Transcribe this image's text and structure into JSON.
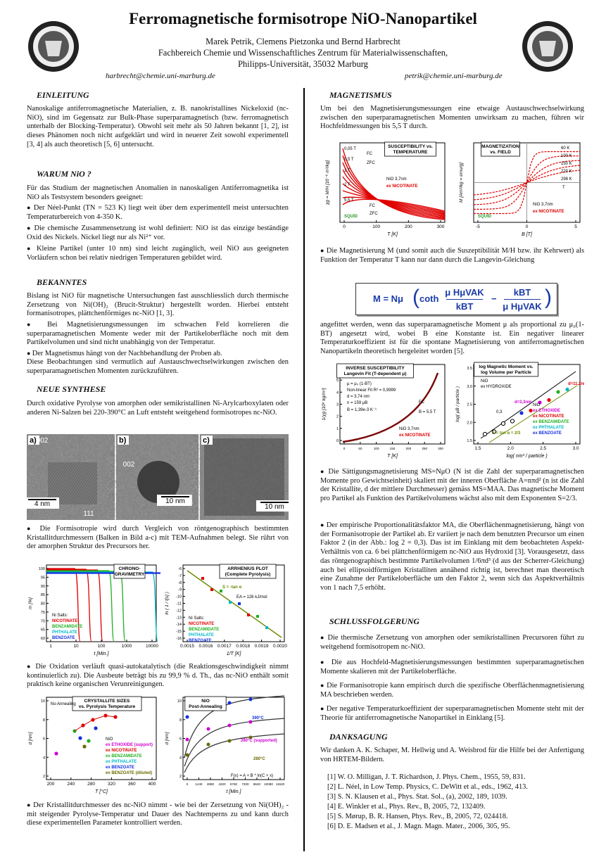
{
  "header": {
    "title": "Ferromagnetische formisotrope NiO-Nanopartikel",
    "authors": "Marek Petrik, Clemens Pietzonka und Bernd Harbrecht",
    "affiliation": "Fachbereich Chemie und Wissenschaftliches Zentrum für Materialwissenschaften,",
    "address": "Philipps-Universität, 35032 Marburg",
    "email_left": "harbrecht@chemie.uni-marburg.de",
    "email_right": "petrik@chemie.uni-marburg.de"
  },
  "left": {
    "einleitung": {
      "heading": "EINLEITUNG",
      "text": "Nanoskalige antiferromagnetische Materialien, z. B. nanokristallines Nickeloxid (nc-NiO), sind im Gegensatz zur Bulk-Phase superparamagnetisch (bzw. ferromagnetisch unterhalb der Blocking-Temperatur). Obwohl seit mehr als 50 Jahren bekannt [1, 2], ist dieses Phänomen noch nicht aufgeklärt und wird in neuerer Zeit sowohl experimentell [3, 4] als auch theoretisch [5, 6] untersucht."
    },
    "warum": {
      "heading": "WARUM NiO ?",
      "intro": "Für das Studium der magnetischen Anomalien in nanoskaligen Antiferromagnetika ist NiO als Testsystem besonders geeignet:",
      "bullets": [
        "Der Néel-Punkt (TN = 523 K) liegt weit über dem experimentell meist untersuchten Temperaturbereich von 4-350 K.",
        "Die chemische Zusammensetzung ist wohl definiert: NiO ist das einzige beständige Oxid des Nickels. Nickel liegt nur als Ni²⁺ vor.",
        "Kleine Partikel (unter 10 nm) sind leicht zugänglich, weil NiO aus geeigneten Vorläufern schon bei relativ niedrigen Temperaturen gebildet wird."
      ]
    },
    "bekanntes": {
      "heading": "BEKANNTES",
      "intro": "Bislang ist NiO für magnetische Untersuchungen fast ausschliesslich durch thermische Zersetzung von Ni(OH)₂ (Brucit-Struktur) hergestellt worden. Hierbei entsteht formanisotropes, plättchenförmiges nc-NiO [1, 3].",
      "bullets": [
        "Bei Magnetisierungsmessungen im schwachen Feld korrelieren die superparamagnetischen Momente weder mit der Partikeloberfläche noch mit dem Partikelvolumen und sind nicht unabhängig von der Temperatur.",
        "Der Magnetismus hängt von der Nachbehandlung der Proben ab."
      ],
      "closing": "Diese Beobachtungen sind vermutlich auf Austauschwechselwirkungen zwischen den superparamagnetischen Momenten zurückzuführen."
    },
    "synthese": {
      "heading": "NEUE SYNTHESE",
      "text": "Durch oxidative Pyrolyse von amorphen oder semikristallinen Ni-Arylcarboxylaten oder anderen Ni-Salzen bei 220-390°C an Luft entsteht weitgehend formisotropes nc-NiO.",
      "tem": [
        {
          "label": "a)",
          "marks": [
            "002",
            "4 nm",
            "111"
          ]
        },
        {
          "label": "b)",
          "marks": [
            "002",
            "10 nm"
          ]
        },
        {
          "label": "c)",
          "marks": [
            "10 nm"
          ]
        }
      ],
      "bullet1": "Die Formisotropie wird durch Vergleich von röntgenographisch bestimmten Kristallitdurchmessern (Balken in Bild a-c) mit TEM-Aufnahmen belegt. Sie rührt von der amorphen Struktur des Precursors her.",
      "bullet2": "Die Oxidation verläuft quasi-autokatalytisch (die Reaktionsgeschwindigkeit nimmt kontinuierlich zu). Die Ausbeute beträgt bis zu 99,9 % d. Th., das nc-NiO enthält somit praktisch keine organischen Verunreinigungen.",
      "bullet3": "Der Kristallitdurchmesser des nc-NiO nimmt - wie bei der Zersetzung von Ni(OH)₂ - mit steigender Pyrolyse-Temperatur und Dauer des Nachtemperns zu und kann durch diese experimentellen Parameter kontrolliert werden."
    }
  },
  "right": {
    "magnetismus": {
      "heading": "MAGNETISMUS",
      "text": "Um bei den Magnetisierungsmessungen eine etwaige Austauschwechselwirkung zwischen den superparamagnetischen Momenten unwirksam zu machen, führen wir Hochfeldmessungen bis 5,5 T durch.",
      "bullet1": "Die Magnetisierung M (und somit auch die Suszeptibilität M/H bzw. ihr Kehrwert) als Funktion der Temperatur T kann nur dann durch die Langevin-Gleichung",
      "equation": {
        "lhs": "M = Nμ",
        "func": "coth",
        "num1": "μ HμVAK",
        "den1": "kBT",
        "op": "−",
        "num2": "kBT",
        "den2": "μ HμVAK"
      },
      "after": "angefittet werden, wenn das superparamagnetische Moment μ als proportional zu μ₀(1-BT) angesetzt wird, wobei B eine Konstante ist. Ein negativer linearer Temperaturkoeffizient ist für die spontane Magnetisierung von antiferromagnetischen Nanopartikeln theoretisch hergeleitet worden [5].",
      "bullet2": "Die Sättigungsmagnetisierung MS=NμO (N ist die Zahl der superparamagnetischen Momente pro Gewichtseinheit) skaliert mit der inneren Oberfläche A=nπd² (n ist die Zahl der Kristallite, d der mittlere Durchmesser) gemäss MS=MAA. Das magnetische Moment pro Partikel als Funktion des Partikelvolumens wächst also mit dem Exponenten S=2/3.",
      "bullet3": "Der empirische Proportionalitätsfaktor MA, die Oberflächenmagnetisierung, hängt von der Formanisotropie der Partikel ab. Er variiert je nach dem benutzten Precursor um einen Faktor 2 (in der Abb.: log 2 = 0,3). Das ist im Einklang mit dem beobachteten Aspekt-Verhältnis von ca. 6 bei plättchenförmigem nc-NiO aus Hydroxid [3]. Vorausgesetzt, dass das röntgenographisch bestimmte Partikelvolumen 1/6πd³ (d aus der Scherrer-Gleichung) auch bei ellipsoidförmigen Kristalliten annähend richtig ist, berechnet man theoretisch eine Zunahme der Partikeloberfläche um den Faktor 2, wenn sich das Aspektverhältnis von 1 nach 7,5 erhöht."
    },
    "schluss": {
      "heading": "SCHLUSSFOLGERUNG",
      "bullets": [
        "Die thermische Zersetzung von amorphen oder semikristallinen Precursoren führt zu weitgehend formisotropem nc-NiO.",
        "Die aus Hochfeld-Magnetisierungsmessungen bestimmten superparamagnetischen Momente skalieren mit der Partikeloberfläche.",
        "Die Formanisotropie kann empirisch durch die spezifische Oberflächenmagnetisierung MA beschrieben werden.",
        "Der negative Temperaturkoeffizient der superparamagnetischen Momente steht mit der Theorie für antiferromagnetische Nanopartikel in Einklang [5]."
      ]
    },
    "dank": {
      "heading": "DANKSAGUNG",
      "text": "Wir danken A. K. Schaper, M. Hellwig und A. Weisbrod für die Hilfe bei der Anfertigung von HRTEM-Bildern.",
      "refs": [
        "[1] W. O. Milligan, J. T. Richardson, J. Phys. Chem., 1955, 59, 831.",
        "[2] L. Néel, in Low Temp. Physics, C. DeWitt et al., eds., 1962, 413.",
        "[3] S. N. Klausen et al., Phys. Stat. Sol., (a), 2002, 189, 1039.",
        "[4] E. Winkler et al., Phys. Rev., B, 2005, 72, 132409.",
        "[5] S. Mørup, B. R. Hansen, Phys. Rev., B, 2005, 72, 024418.",
        "[6] D. E. Madsen et al., J. Magn. Magn. Mater., 2006, 305, 95."
      ]
    }
  },
  "figures": {
    "susceptibility": {
      "title": [
        "SUSCEPTIBILITY vs.",
        "TEMPERATURE"
      ],
      "xlabel": "T [K]",
      "ylabel": "χg = M/H [10⁻⁶ m³/kg]",
      "xticks": [
        0,
        100,
        200,
        300
      ],
      "labels": [
        "0,05 T",
        "0,5 T",
        "1 T",
        "2 T",
        "5,5 T",
        "FC",
        "ZFC",
        "FC",
        "ZFC",
        "NiO 3,7nm",
        {
          "text": "ex NICOTINATE",
          "color": "#e00000"
        },
        {
          "text": "SQUID",
          "color": "#2a9a2a"
        }
      ]
    },
    "magnetization": {
      "title": [
        "MAGNETIZATION",
        "vs. FIELD"
      ],
      "xlabel": "B [T]",
      "ylabel": "M [Am²/kg = emu/g]",
      "xticks": [
        -5,
        0,
        5
      ],
      "labels": [
        "60 K",
        "100 K",
        "150 K",
        "220 K",
        "298 K",
        "T",
        "NiO 3,7nm",
        {
          "text": "ex NICOTINATE",
          "color": "#e00000"
        },
        {
          "text": "SQUID",
          "color": "#2a9a2a"
        }
      ]
    },
    "inverse": {
      "title": [
        "INVERSE SUSCEPTIBILITY",
        "Langevin Fit (T-dependent μ)"
      ],
      "xlabel": "T [K]",
      "ylabel": "1/χg [10⁶ kg/m³]",
      "xticks": [
        0,
        50,
        100,
        150,
        200,
        250,
        300
      ],
      "yticks": [
        0,
        1,
        2,
        3,
        4,
        5,
        6
      ],
      "labels": [
        "μ = μ₀ (1-BT)",
        "Non-linear Fit R² = 0,9999",
        "d = 3,74 nm",
        "n = 159 μB",
        "B = 1,39e-3 K⁻¹",
        "FC",
        "B = 5,5 T",
        "NiO 3,7nm",
        {
          "text": "ex NICOTINATE",
          "color": "#e00000"
        }
      ]
    },
    "logmoment": {
      "title": [
        "log Magnetic Moment vs.",
        "log Volume per Particle"
      ],
      "xlabel": "log( nm³ / particle )",
      "ylabel": "log( μB / particle )",
      "xticks": [
        "1.5",
        "2.0",
        "2.5",
        "3.0"
      ],
      "yticks": [
        "1.5",
        "2.0",
        "2.5",
        "3.0",
        "3.5"
      ],
      "labels": [
        "NiO",
        "ex HYDROXIDE",
        "NiO",
        {
          "text": "ex ETHOXIDE",
          "color": "#d000d0"
        },
        {
          "text": "ex NICOTINATE",
          "color": "#e00000"
        },
        {
          "text": "ex BENZAMIDATE",
          "color": "#20b020"
        },
        {
          "text": "ex PHTHALATE",
          "color": "#00b8c8"
        },
        {
          "text": "ex BENZOATE",
          "color": "#1030e0"
        },
        {
          "text": "S = tan α = 2/3",
          "color": "#6a8a00"
        },
        "0,3",
        {
          "text": "d=3,3nm",
          "color": "#d000d0"
        },
        {
          "text": "d=11,2nm",
          "color": "#e00000"
        }
      ]
    },
    "chrono": {
      "title": [
        "CHRONO-",
        "GRAVIMETRY"
      ],
      "xlabel": "t [Min.]",
      "ylabel": "m [%]",
      "xticks": [
        1,
        10,
        100,
        1000,
        10000
      ],
      "yticks": [
        60,
        65,
        70,
        75,
        80,
        85,
        90,
        95,
        100
      ],
      "labels": [
        "Ni Salts:",
        {
          "text": "NICOTINATE",
          "color": "#e00000"
        },
        {
          "text": "BENZAMIDATE",
          "color": "#20b020"
        },
        {
          "text": "PHTHALATE",
          "color": "#00b8c8"
        },
        {
          "text": "BENZOATE",
          "color": "#1030e0"
        }
      ]
    },
    "arrhenius": {
      "title": [
        "ARRHENIUS PLOT",
        "(Complete Pyrolysis)"
      ],
      "xlabel": "1/T [K]",
      "ylabel": "ln ( 1 / t[s] )",
      "xticks": [
        "0.0015",
        "0.0016",
        "0.0017",
        "0.0018",
        "0.0019",
        "0.0020"
      ],
      "yticks": [
        -16,
        -15,
        -14,
        -13,
        -12,
        -11,
        -10,
        -9,
        -8,
        -7,
        -6
      ],
      "labels": [
        {
          "text": "S = -tan α",
          "color": "#6a8a00"
        },
        "EA = 126 kJ/mol",
        "Ni Salts:",
        {
          "text": "NICOTINATE",
          "color": "#e00000"
        },
        {
          "text": "BENZAMIDATE",
          "color": "#20b020"
        },
        {
          "text": "PHTHALATE",
          "color": "#00b8c8"
        },
        {
          "text": "BENZOATE",
          "color": "#1030e0"
        }
      ]
    },
    "crystallite": {
      "title": [
        "CRYSTALLITE SIZES",
        "vs. Pyrolysis Temperature"
      ],
      "xlabel": "T [°C]",
      "ylabel": "d [nm]",
      "xticks": [
        200,
        240,
        280,
        320,
        360,
        400
      ],
      "yticks": [
        2,
        4,
        6,
        8,
        10
      ],
      "labels": [
        "No Annealing",
        "NiO",
        {
          "text": "ex ETHOXIDE (support)",
          "color": "#d000d0"
        },
        {
          "text": "ex NICOTINATE",
          "color": "#e00000"
        },
        {
          "text": "ex BENZAMIDATE",
          "color": "#20b020"
        },
        {
          "text": "ex PHTHALATE",
          "color": "#00b8c8"
        },
        {
          "text": "ex BENZOATE",
          "color": "#1030e0"
        },
        {
          "text": "ex BENZOATE (diluted)",
          "color": "#6a6a00"
        }
      ]
    },
    "annealing": {
      "title": [
        "NiO",
        "Post-Annealing"
      ],
      "xlabel": "t [Min.]",
      "ylabel": "d [nm]",
      "xticks": [
        0,
        1440,
        2880,
        4320,
        5760,
        7200,
        8640,
        10080,
        11520
      ],
      "yticks": [
        2,
        4,
        6,
        8,
        10
      ],
      "labels": [
        {
          "text": "390°C",
          "color": "#1030e0"
        },
        {
          "text": "280°C (supported)",
          "color": "#d000d0"
        },
        {
          "text": "280°C",
          "color": "#6a6a00"
        },
        "F(x) = A + B * ln(C + x)"
      ]
    }
  }
}
